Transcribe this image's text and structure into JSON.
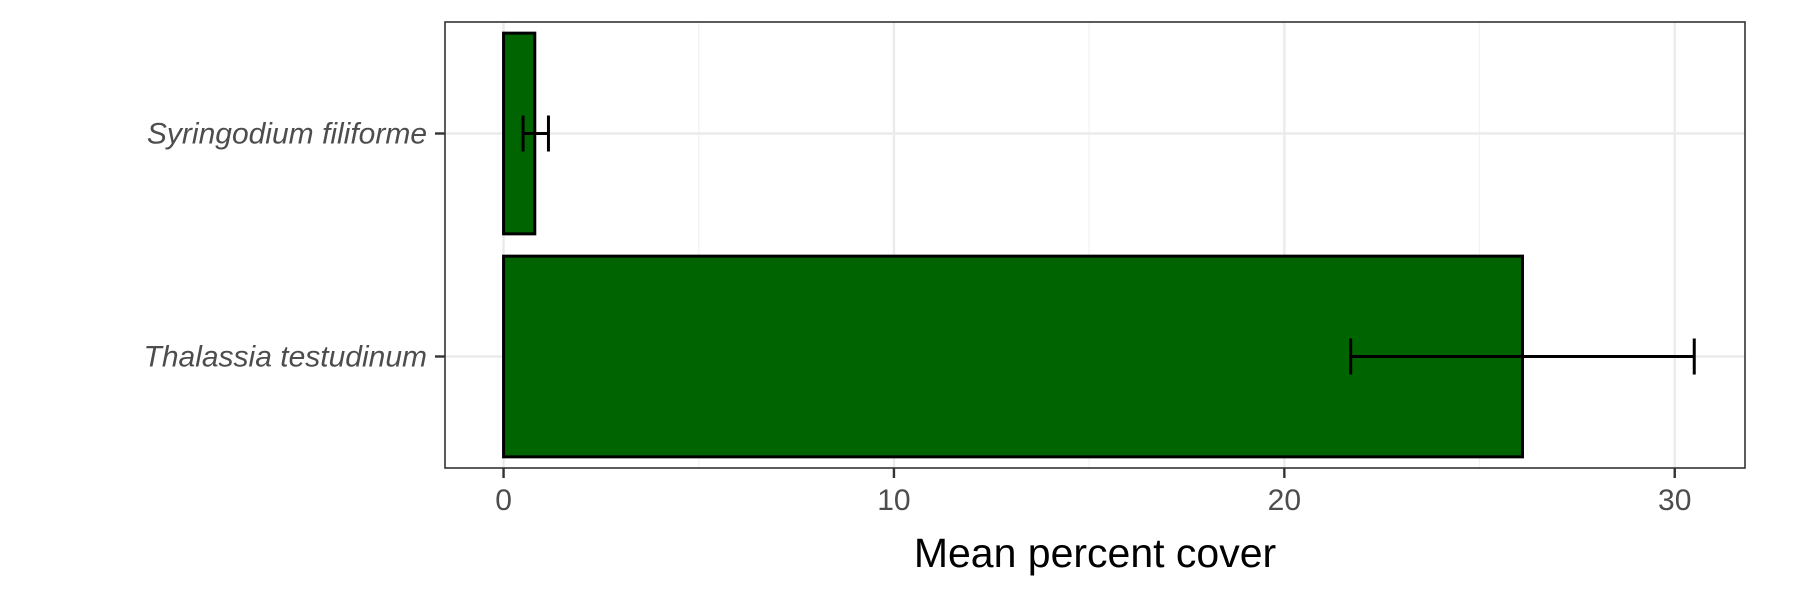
{
  "chart_data": {
    "type": "bar",
    "orientation": "horizontal",
    "categories": [
      "Syringodium filiforme",
      "Thalassia testudinum"
    ],
    "values": [
      0.8,
      26.1
    ],
    "error_bars": [
      {
        "low": 0.5,
        "high": 1.15
      },
      {
        "low": 21.7,
        "high": 30.5
      }
    ],
    "xlabel": "Mean percent cover",
    "ylabel": "",
    "xlim": [
      -1.5,
      31.8
    ],
    "x_ticks": [
      0,
      10,
      20,
      30
    ],
    "x_tick_labels": [
      "0",
      "10",
      "20",
      "30"
    ],
    "grid": true,
    "bar_color": "#006400",
    "bar_outline_color": "#000000",
    "panel_border_color": "#333333",
    "grid_color": "#ebebeb"
  }
}
